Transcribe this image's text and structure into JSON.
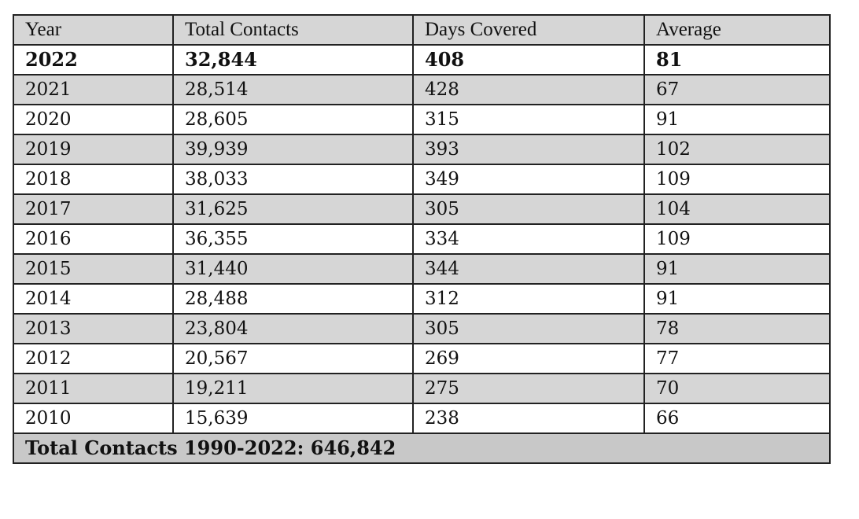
{
  "table": {
    "headers": [
      "Year",
      "Total Contacts",
      "Days Covered",
      "Average"
    ],
    "rows": [
      [
        "2022",
        "32,844",
        "408",
        "81"
      ],
      [
        "2021",
        "28,514",
        "428",
        "67"
      ],
      [
        "2020",
        "28,605",
        "315",
        "91"
      ],
      [
        "2019",
        "39,939",
        "393",
        "102"
      ],
      [
        "2018",
        "38,033",
        "349",
        "109"
      ],
      [
        "2017",
        "31,625",
        "305",
        "104"
      ],
      [
        "2016",
        "36,355",
        "334",
        "109"
      ],
      [
        "2015",
        "31,440",
        "344",
        "91"
      ],
      [
        "2014",
        "28,488",
        "312",
        "91"
      ],
      [
        "2013",
        "23,804",
        "305",
        "78"
      ],
      [
        "2012",
        "20,567",
        "269",
        "77"
      ],
      [
        "2011",
        "19,211",
        "275",
        "70"
      ],
      [
        "2010",
        "15,639",
        "238",
        "66"
      ]
    ],
    "footer": "Total Contacts 1990-2022: 646,842"
  },
  "colors": {
    "header_bg": "#d6d6d6",
    "alt_row_bg": "#d6d6d6",
    "footer_bg": "#c8c8c8",
    "border": "#222222"
  }
}
